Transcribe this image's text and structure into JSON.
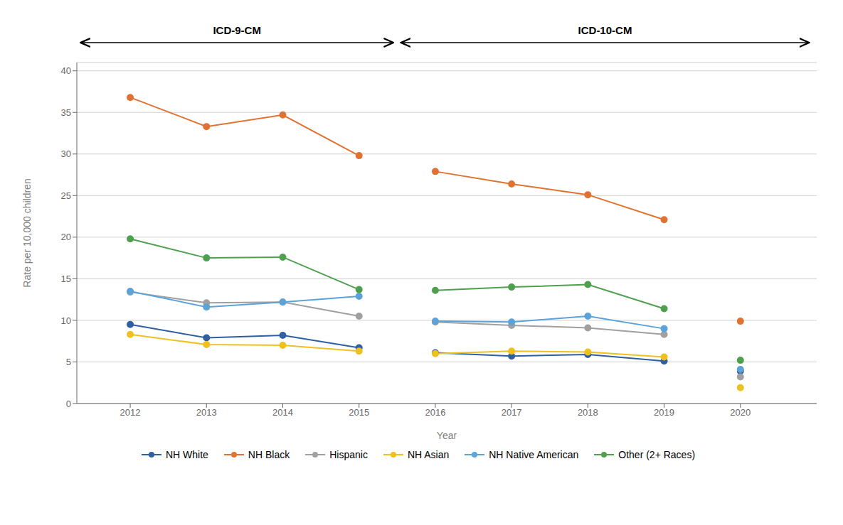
{
  "chart_data": {
    "type": "line",
    "xlabel": "Year",
    "ylabel": "Rate per 10,000 children",
    "xlim": [
      2011.3,
      2021.0
    ],
    "xticks": [
      2012,
      2013,
      2014,
      2015,
      2016,
      2017,
      2018,
      2019,
      2020
    ],
    "ylim": [
      0,
      41
    ],
    "yticks": [
      0,
      5,
      10,
      15,
      20,
      25,
      30,
      35,
      40
    ],
    "grid": true,
    "legend": "bottom",
    "annotations": [
      {
        "text": "ICD-9-CM"
      },
      {
        "text": "ICD-10-CM"
      }
    ],
    "series": [
      {
        "name": "NH White",
        "color": "#2E5FA3",
        "marker": "circle",
        "segments": [
          {
            "x": [
              2012,
              2013,
              2014,
              2015
            ],
            "values": [
              9.5,
              7.9,
              8.2,
              6.7
            ]
          },
          {
            "x": [
              2016,
              2017,
              2018,
              2019
            ],
            "values": [
              6.1,
              5.7,
              5.9,
              5.1
            ]
          },
          {
            "x": [
              2020
            ],
            "values": [
              3.9
            ]
          }
        ]
      },
      {
        "name": "NH Black",
        "color": "#E07232",
        "marker": "circle",
        "segments": [
          {
            "x": [
              2012,
              2013,
              2014,
              2015
            ],
            "values": [
              36.8,
              33.3,
              34.7,
              29.8
            ]
          },
          {
            "x": [
              2016,
              2017,
              2018,
              2019
            ],
            "values": [
              27.9,
              26.4,
              25.1,
              22.1
            ]
          },
          {
            "x": [
              2020
            ],
            "values": [
              9.9
            ]
          }
        ]
      },
      {
        "name": "Hispanic",
        "color": "#A0A0A0",
        "marker": "circle",
        "segments": [
          {
            "x": [
              2012,
              2013,
              2014,
              2015
            ],
            "values": [
              13.4,
              12.1,
              12.2,
              10.5
            ]
          },
          {
            "x": [
              2016,
              2017,
              2018,
              2019
            ],
            "values": [
              9.8,
              9.4,
              9.1,
              8.3
            ]
          },
          {
            "x": [
              2020
            ],
            "values": [
              3.2
            ]
          }
        ]
      },
      {
        "name": "NH Asian",
        "color": "#F0C020",
        "marker": "circle",
        "segments": [
          {
            "x": [
              2012,
              2013,
              2014,
              2015
            ],
            "values": [
              8.3,
              7.1,
              7.0,
              6.3
            ]
          },
          {
            "x": [
              2016,
              2017,
              2018,
              2019
            ],
            "values": [
              6.0,
              6.3,
              6.2,
              5.6
            ]
          },
          {
            "x": [
              2020
            ],
            "values": [
              1.9
            ]
          }
        ]
      },
      {
        "name": "NH Native American",
        "color": "#5BA3D9",
        "marker": "circle",
        "segments": [
          {
            "x": [
              2012,
              2013,
              2014,
              2015
            ],
            "values": [
              13.5,
              11.6,
              12.2,
              12.9
            ]
          },
          {
            "x": [
              2016,
              2017,
              2018,
              2019
            ],
            "values": [
              9.9,
              9.8,
              10.5,
              9.0
            ]
          },
          {
            "x": [
              2020
            ],
            "values": [
              4.1
            ]
          }
        ]
      },
      {
        "name": "Other (2+ Races)",
        "color": "#4EA04E",
        "marker": "circle",
        "segments": [
          {
            "x": [
              2012,
              2013,
              2014,
              2015
            ],
            "values": [
              19.8,
              17.5,
              17.6,
              13.7
            ]
          },
          {
            "x": [
              2016,
              2017,
              2018,
              2019
            ],
            "values": [
              13.6,
              14.0,
              14.3,
              11.4
            ]
          },
          {
            "x": [
              2020
            ],
            "values": [
              5.2
            ]
          }
        ]
      }
    ]
  }
}
